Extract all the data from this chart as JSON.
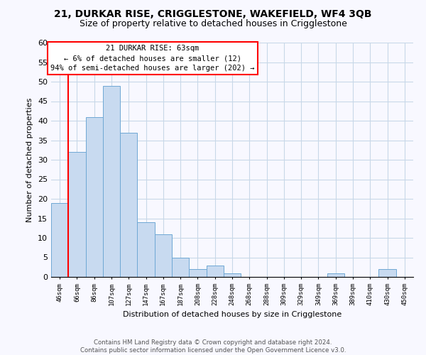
{
  "title": "21, DURKAR RISE, CRIGGLESTONE, WAKEFIELD, WF4 3QB",
  "subtitle": "Size of property relative to detached houses in Crigglestone",
  "xlabel": "Distribution of detached houses by size in Crigglestone",
  "ylabel": "Number of detached properties",
  "bar_labels": [
    "46sqm",
    "66sqm",
    "86sqm",
    "107sqm",
    "127sqm",
    "147sqm",
    "167sqm",
    "187sqm",
    "208sqm",
    "228sqm",
    "248sqm",
    "268sqm",
    "288sqm",
    "309sqm",
    "329sqm",
    "349sqm",
    "369sqm",
    "389sqm",
    "410sqm",
    "430sqm",
    "450sqm"
  ],
  "bar_values": [
    19,
    32,
    41,
    49,
    37,
    14,
    11,
    5,
    2,
    3,
    1,
    0,
    0,
    0,
    0,
    0,
    1,
    0,
    0,
    2,
    0
  ],
  "bar_color": "#c8daf0",
  "bar_edge_color": "#6fa8d4",
  "ylim": [
    0,
    60
  ],
  "yticks": [
    0,
    5,
    10,
    15,
    20,
    25,
    30,
    35,
    40,
    45,
    50,
    55,
    60
  ],
  "annotation_title": "21 DURKAR RISE: 63sqm",
  "annotation_line1": "← 6% of detached houses are smaller (12)",
  "annotation_line2": "94% of semi-detached houses are larger (202) →",
  "footer_line1": "Contains HM Land Registry data © Crown copyright and database right 2024.",
  "footer_line2": "Contains public sector information licensed under the Open Government Licence v3.0.",
  "red_line_x": 0.5,
  "background_color": "#f8f8ff",
  "title_fontsize": 10,
  "subtitle_fontsize": 9
}
